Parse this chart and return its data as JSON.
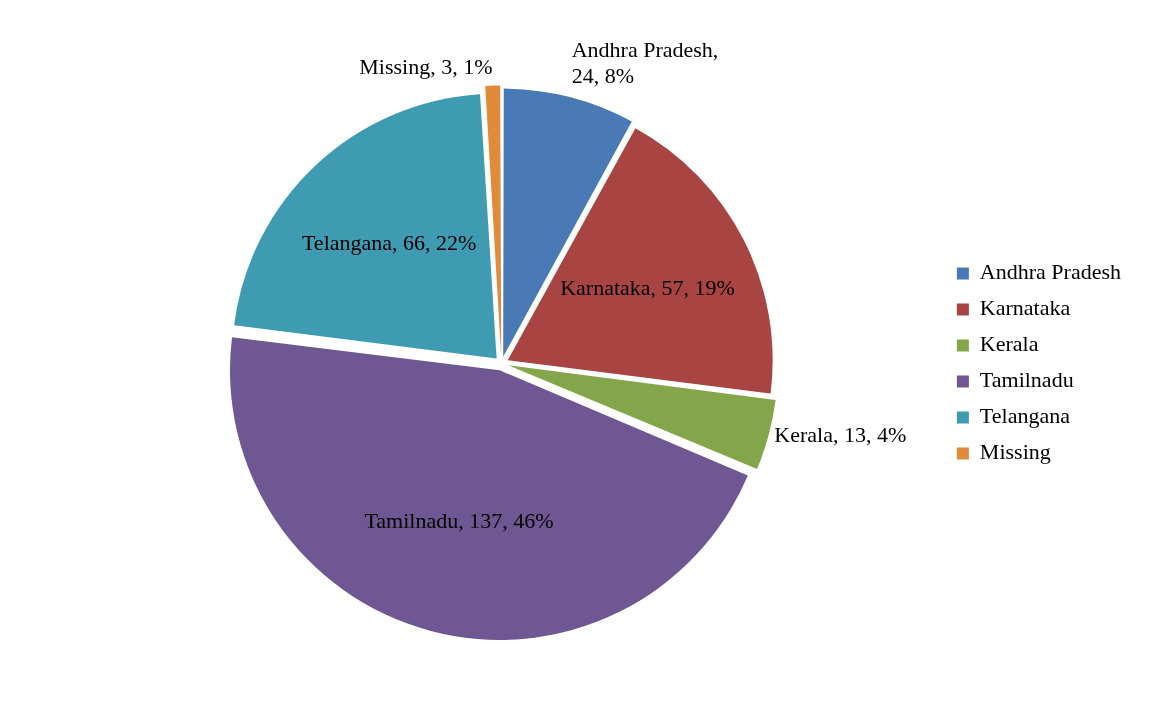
{
  "chart_data": {
    "type": "pie",
    "categories": [
      "Andhra Pradesh",
      "Karnataka",
      "Kerala",
      "Tamilnadu",
      "Telangana",
      "Missing"
    ],
    "values": [
      24,
      57,
      13,
      137,
      66,
      3
    ],
    "colors": [
      "#4a7ab5",
      "#a84543",
      "#84a64a",
      "#6e5792",
      "#3f9bb2",
      "#e08a3a"
    ],
    "value_labels": [
      "Andhra Pradesh, 24, 8%",
      "Karnataka, 57, 19%",
      "Kerala, 13, 4%",
      "Tamilnadu, 137, 46%",
      "Telangana, 66, 22%",
      "Missing, 3, 1%"
    ],
    "legend": "right"
  }
}
